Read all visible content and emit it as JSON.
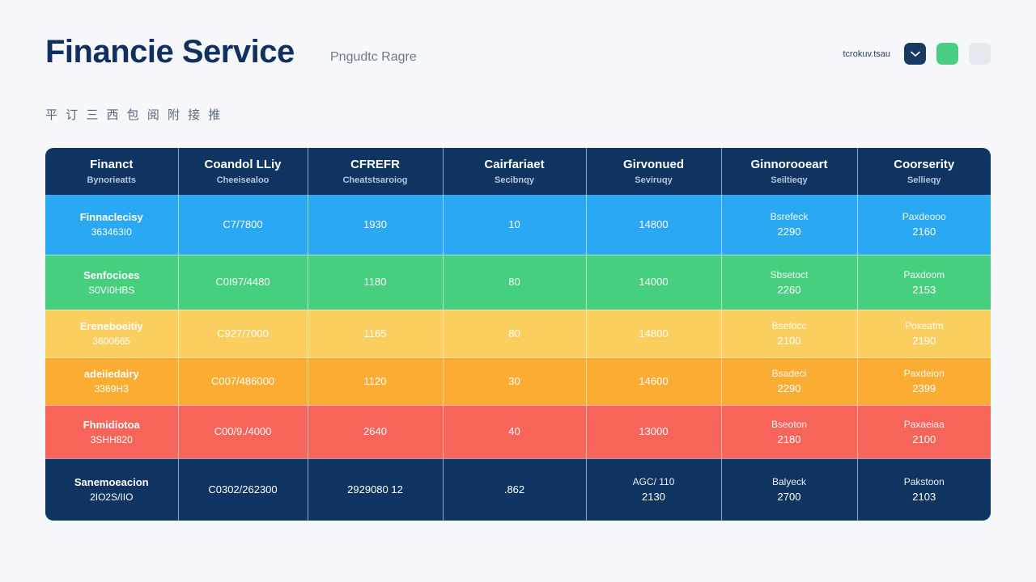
{
  "header": {
    "title": "Financie Service",
    "subtitle": "Pngudtc Ragre",
    "status_text": "tcrokuv.tsau"
  },
  "header_buttons": [
    {
      "icon": "chevron-down-icon",
      "color": "#173a63"
    },
    {
      "icon": "status-square-icon",
      "color": "#49cd85"
    },
    {
      "icon": "blank-square-icon",
      "color": "#e4e9f0"
    }
  ],
  "section_label": "平 订 三 西 包 阅 附 接 推",
  "table": {
    "columns": [
      {
        "title": "Financt",
        "subtitle": "Bynorieatts"
      },
      {
        "title": "Coandol LLiy",
        "subtitle": "Cheeisealoo"
      },
      {
        "title": "CFREFR",
        "subtitle": "Cheatstsaroiog"
      },
      {
        "title": "Cairfariaet",
        "subtitle": "Secibnqy"
      },
      {
        "title": "Girvonued",
        "subtitle": "Seviruqy"
      },
      {
        "title": "Ginnorooeart",
        "subtitle": "Seiltieqy"
      },
      {
        "title": "Coorserity",
        "subtitle": "Sellieqy"
      }
    ],
    "rows": [
      {
        "name": "Finnaclecisy",
        "code": "363463I0",
        "c1": "C7/7800",
        "c2": "1930",
        "c3": "10",
        "c4": "14800",
        "c5_label": "Bsrefeck",
        "c5_value": "2290",
        "c6_label": "Paxdeooo",
        "c6_value": "2160"
      },
      {
        "name": "Senfocioes",
        "code": "S0VI0HBS",
        "c1": "C0I97/4480",
        "c2": "1180",
        "c3": "80",
        "c4": "14000",
        "c5_label": "Sbsetoct",
        "c5_value": "2260",
        "c6_label": "Paxdoom",
        "c6_value": "2153"
      },
      {
        "name": "Ereneboeitiy",
        "code": "3600665",
        "c1": "C927/7000",
        "c2": "1165",
        "c3": "80",
        "c4": "14800",
        "c5_label": "Bsefocc",
        "c5_value": "2100",
        "c6_label": "Poxeatm",
        "c6_value": "2190"
      },
      {
        "name": "adeiiedairy",
        "code": "3369H3",
        "c1": "C007/486000",
        "c2": "1120",
        "c3": "30",
        "c4": "14600",
        "c5_label": "Bsadeci",
        "c5_value": "2290",
        "c6_label": "Paxdeion",
        "c6_value": "2399"
      },
      {
        "name": "Fhmidiotoa",
        "code": "3SHH820",
        "c1": "C00/9./4000",
        "c2": "2640",
        "c3": "40",
        "c4": "13000",
        "c5_label": "Bseoton",
        "c5_value": "2180",
        "c6_label": "Paxaeiaa",
        "c6_value": "2100"
      },
      {
        "name": "Sanemoeacion",
        "code": "2IO2S/IIO",
        "c1": "C0302/262300",
        "c2": "2929080 12",
        "c3": ".862",
        "c4_label": "AGC/ 110",
        "c4": "2130",
        "c5_label": "Balyeck",
        "c5_value": "2700",
        "c6_label": "Pakstoon",
        "c6_value": "2103"
      }
    ]
  }
}
